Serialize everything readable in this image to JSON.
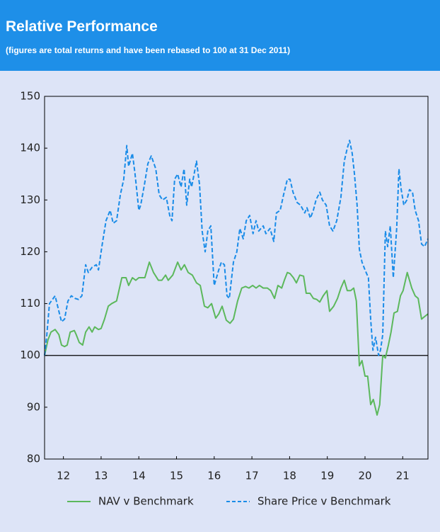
{
  "chart_data": {
    "type": "line",
    "title": "Relative Performance",
    "subtitle": "(figures are total returns and have been rebased to 100 at 31 Dec 2011)",
    "xlim": [
      2012,
      2022.17
    ],
    "xticks": [
      {
        "value": 2012.5,
        "label": "12"
      },
      {
        "value": 2013.5,
        "label": "13"
      },
      {
        "value": 2014.5,
        "label": "14"
      },
      {
        "value": 2015.5,
        "label": "15"
      },
      {
        "value": 2016.5,
        "label": "16"
      },
      {
        "value": 2017.5,
        "label": "17"
      },
      {
        "value": 2018.5,
        "label": "18"
      },
      {
        "value": 2019.5,
        "label": "19"
      },
      {
        "value": 2020.5,
        "label": "20"
      },
      {
        "value": 2021.5,
        "label": "21"
      }
    ],
    "ylim": [
      80,
      150
    ],
    "yticks": [
      80,
      90,
      100,
      110,
      120,
      130,
      140,
      150
    ],
    "reference_line": 100,
    "grid": false,
    "legend": "bottom",
    "series": [
      {
        "name": "NAV v Benchmark",
        "color": "#5cb85c",
        "line_style": "solid",
        "x": [
          2012.0,
          2012.09,
          2012.17,
          2012.28,
          2012.38,
          2012.45,
          2012.53,
          2012.6,
          2012.68,
          2012.79,
          2012.84,
          2012.92,
          2013.01,
          2013.09,
          2013.18,
          2013.26,
          2013.33,
          2013.43,
          2013.5,
          2013.59,
          2013.69,
          2013.78,
          2013.91,
          2014.05,
          2014.16,
          2014.23,
          2014.33,
          2014.42,
          2014.5,
          2014.66,
          2014.78,
          2014.89,
          2015.02,
          2015.11,
          2015.21,
          2015.28,
          2015.4,
          2015.53,
          2015.62,
          2015.71,
          2015.81,
          2015.92,
          2016.03,
          2016.13,
          2016.24,
          2016.33,
          2016.43,
          2016.54,
          2016.62,
          2016.71,
          2016.82,
          2016.92,
          2017.01,
          2017.12,
          2017.23,
          2017.33,
          2017.42,
          2017.52,
          2017.61,
          2017.7,
          2017.8,
          2017.91,
          2018.0,
          2018.1,
          2018.19,
          2018.29,
          2018.36,
          2018.44,
          2018.51,
          2018.6,
          2018.68,
          2018.77,
          2018.87,
          2018.94,
          2019.04,
          2019.13,
          2019.22,
          2019.3,
          2019.39,
          2019.49,
          2019.56,
          2019.67,
          2019.77,
          2019.86,
          2019.95,
          2020.03,
          2020.12,
          2020.2,
          2020.27,
          2020.35,
          2020.42,
          2020.5,
          2020.57,
          2020.65,
          2020.72,
          2020.82,
          2020.89,
          2020.97,
          2021.04,
          2021.12,
          2021.19,
          2021.27,
          2021.36,
          2021.44,
          2021.51,
          2021.62,
          2021.74,
          2021.83,
          2021.91,
          2022.0,
          2022.08,
          2022.17
        ],
        "values": [
          100,
          103,
          104.5,
          105,
          104,
          102,
          101.7,
          102,
          104.5,
          104.8,
          104,
          102.5,
          102,
          104.5,
          105.5,
          104.5,
          105.5,
          105,
          105.2,
          107,
          109.5,
          110,
          110.5,
          115,
          115,
          113.5,
          115,
          114.5,
          115,
          115,
          118,
          116,
          114.5,
          114.5,
          115.5,
          114.5,
          115.5,
          118,
          116.5,
          117.5,
          116,
          115.5,
          114,
          113.5,
          109.5,
          109.2,
          110,
          107.2,
          108,
          109.5,
          106.8,
          106.2,
          107,
          110.5,
          113,
          113.3,
          113,
          113.5,
          113,
          113.5,
          113,
          113,
          112.5,
          111,
          113.5,
          113,
          114.5,
          116,
          115.8,
          115,
          114,
          115.5,
          115.3,
          112,
          112,
          111,
          110.8,
          110.3,
          111.5,
          112.5,
          108.5,
          109.5,
          111,
          113,
          114.5,
          112.5,
          112.5,
          113,
          110.5,
          98,
          99,
          96,
          96,
          90.5,
          91.5,
          88.5,
          90.5,
          100,
          99.5,
          102,
          104.5,
          108.2,
          108.5,
          111.5,
          112.5,
          116,
          113,
          111.5,
          111,
          107,
          107.5,
          108
        ]
      },
      {
        "name": "Share Price v Benchmark",
        "color": "#1a8ce8",
        "line_style": "dashed",
        "x": [
          2012.0,
          2012.06,
          2012.13,
          2012.23,
          2012.28,
          2012.38,
          2012.45,
          2012.53,
          2012.62,
          2012.71,
          2012.81,
          2012.9,
          2012.99,
          2013.09,
          2013.16,
          2013.26,
          2013.37,
          2013.43,
          2013.52,
          2013.63,
          2013.74,
          2013.82,
          2013.91,
          2014.01,
          2014.1,
          2014.18,
          2014.23,
          2014.33,
          2014.4,
          2014.5,
          2014.55,
          2014.65,
          2014.74,
          2014.83,
          2014.95,
          2015.04,
          2015.13,
          2015.23,
          2015.32,
          2015.38,
          2015.45,
          2015.53,
          2015.62,
          2015.7,
          2015.77,
          2015.85,
          2015.9,
          2015.98,
          2016.03,
          2016.11,
          2016.18,
          2016.26,
          2016.33,
          2016.41,
          2016.5,
          2016.62,
          2016.69,
          2016.77,
          2016.84,
          2016.9,
          2017.01,
          2017.1,
          2017.18,
          2017.27,
          2017.35,
          2017.44,
          2017.53,
          2017.61,
          2017.68,
          2017.8,
          2017.87,
          2017.98,
          2018.08,
          2018.15,
          2018.25,
          2018.34,
          2018.44,
          2018.51,
          2018.59,
          2018.7,
          2018.79,
          2018.9,
          2018.96,
          2019.05,
          2019.13,
          2019.2,
          2019.3,
          2019.37,
          2019.47,
          2019.56,
          2019.65,
          2019.75,
          2019.86,
          2019.95,
          2020.03,
          2020.09,
          2020.16,
          2020.22,
          2020.29,
          2020.35,
          2020.42,
          2020.5,
          2020.59,
          2020.65,
          2020.71,
          2020.78,
          2020.86,
          2020.91,
          2020.97,
          2021.04,
          2021.1,
          2021.17,
          2021.25,
          2021.34,
          2021.4,
          2021.46,
          2021.53,
          2021.61,
          2021.68,
          2021.76,
          2021.83,
          2021.92,
          2022.0,
          2022.08,
          2022.17
        ],
        "values": [
          100,
          104,
          110,
          111,
          111.5,
          108.5,
          106.5,
          107,
          110.5,
          111.5,
          111,
          110.8,
          111.5,
          117.5,
          116,
          117,
          117.5,
          116.5,
          121,
          126,
          128,
          125.5,
          126,
          131,
          134,
          140.5,
          136.5,
          139,
          135,
          128,
          129,
          133,
          137,
          138.5,
          136,
          131,
          130,
          130.5,
          127,
          126,
          134,
          135,
          132.5,
          136,
          129,
          134,
          132.5,
          135.5,
          137.5,
          133,
          124,
          120,
          124,
          125,
          113.5,
          116.5,
          118,
          117.5,
          111.5,
          111,
          118,
          120,
          124.5,
          122.5,
          126,
          127,
          123.5,
          126,
          124,
          125,
          123.5,
          124.5,
          122,
          127.5,
          128,
          131,
          134,
          134,
          131.5,
          129.5,
          129,
          127.5,
          128.5,
          126.5,
          128,
          130,
          131.5,
          130,
          129,
          125,
          124,
          126,
          130.5,
          137.5,
          140,
          141.5,
          139,
          135,
          129,
          120.5,
          118,
          116.5,
          115,
          107,
          101,
          103.5,
          100,
          101,
          104,
          124,
          121,
          125,
          115,
          124.5,
          136,
          132,
          129,
          130,
          132,
          131.5,
          128,
          126,
          121.5,
          121,
          122.5
        ]
      }
    ]
  }
}
